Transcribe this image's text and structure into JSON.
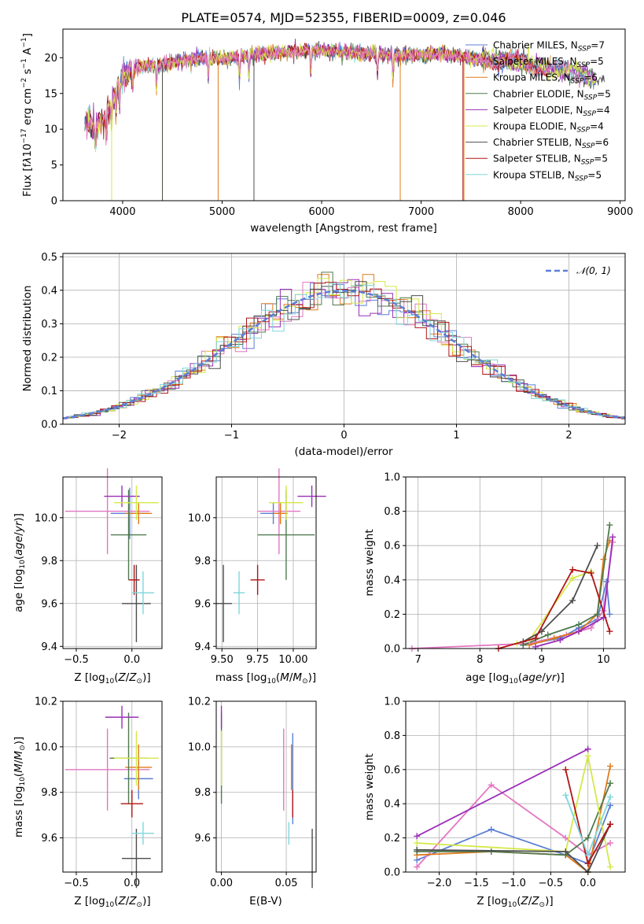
{
  "figure": {
    "title": "PLATE=0574, MJD=52355, FIBERID=0009, z=0.046",
    "colors": {
      "c1": "#5b7fd6",
      "c2": "#e377c2",
      "c3": "#e07b1a",
      "c4": "#4f7a4f",
      "c5": "#9a2fb8",
      "c6": "#d4e84a",
      "c7": "#4d4d4d",
      "c8": "#b01515",
      "c9": "#7fd6dc"
    },
    "models": [
      {
        "name": "Chabrier MILES",
        "nssp": "7",
        "color": "#5b7fd6"
      },
      {
        "name": "Salpeter MILES",
        "nssp": "5",
        "color": "#e377c2"
      },
      {
        "name": "Kroupa MILES",
        "nssp": "6",
        "color": "#e07b1a"
      },
      {
        "name": "Chabrier ELODIE",
        "nssp": "5",
        "color": "#4f7a4f"
      },
      {
        "name": "Salpeter ELODIE",
        "nssp": "4",
        "color": "#9a2fb8"
      },
      {
        "name": "Kroupa ELODIE",
        "nssp": "4",
        "color": "#d4e84a"
      },
      {
        "name": "Chabrier STELIB",
        "nssp": "6",
        "color": "#4d4d4d"
      },
      {
        "name": "Salpeter STELIB",
        "nssp": "5",
        "color": "#b01515"
      },
      {
        "name": "Kroupa STELIB",
        "nssp": "5",
        "color": "#7fd6dc"
      }
    ]
  },
  "chart_data": [
    {
      "type": "line",
      "id": "spectrum",
      "xlabel": "wavelength [Angstrom, rest frame]",
      "ylabel": "Flux [f_λ 10^-17 erg cm^-2 s^-1 A^-1]",
      "xlim": [
        3400,
        9050
      ],
      "ylim": [
        0,
        24
      ],
      "xticks": [
        4000,
        5000,
        6000,
        7000,
        8000,
        9000
      ],
      "yticks": [
        0,
        5,
        10,
        15,
        20
      ],
      "grid": false,
      "legend": "top-right",
      "continuum": {
        "x": [
          3650,
          3700,
          3800,
          3900,
          4000,
          4100,
          4200,
          4400,
          4600,
          4800,
          5000,
          5300,
          5600,
          6000,
          6400,
          6800,
          7000,
          7200,
          7400,
          7600,
          7800,
          8000,
          8200,
          8400,
          8600,
          8800
        ],
        "y": [
          11,
          10.5,
          11,
          14,
          17.5,
          18.3,
          18.8,
          19,
          19.6,
          20,
          19.8,
          20.4,
          20.8,
          21,
          20.6,
          20.4,
          20.4,
          20.5,
          20.2,
          19.8,
          19.6,
          19.4,
          18.7,
          18.4,
          17.8,
          16.8
        ]
      }
    },
    {
      "type": "histogram",
      "id": "residuals",
      "xlabel": "(data-model)/error",
      "ylabel": "Normed distribution",
      "xlim": [
        -2.5,
        2.5
      ],
      "ylim": [
        0,
        0.51
      ],
      "xticks": [
        -2,
        -1,
        0,
        1,
        2
      ],
      "yticks": [
        0,
        0.1,
        0.2,
        0.3,
        0.4,
        0.5
      ],
      "grid": true,
      "legend": "top-right",
      "reference": {
        "name": "N(0,1)",
        "mean": 0,
        "sigma": 1
      },
      "bin_width": 0.1
    },
    {
      "type": "scatter",
      "id": "age_vs_Z",
      "xlabel": "Z [log10(Z/Z⊙)]",
      "ylabel": "age [log10(age/yr)]",
      "xlim": [
        -0.62,
        0.27
      ],
      "ylim": [
        9.39,
        10.19
      ],
      "xticks": [
        -0.5,
        0.0
      ],
      "yticks": [
        9.4,
        9.6,
        9.8,
        10.0
      ],
      "grid": true,
      "points": [
        {
          "x": -0.02,
          "y": 10.02,
          "xerr": 0.17,
          "yerr": 0.12
        },
        {
          "x": -0.22,
          "y": 10.03,
          "xerr": 0.38,
          "yerr": 0.2
        },
        {
          "x": 0.06,
          "y": 10.02,
          "xerr": 0.12,
          "yerr": 0.05
        },
        {
          "x": -0.03,
          "y": 9.92,
          "xerr": 0.16,
          "yerr": 0.21
        },
        {
          "x": -0.09,
          "y": 10.1,
          "xerr": 0.16,
          "yerr": 0.05
        },
        {
          "x": 0.04,
          "y": 10.07,
          "xerr": 0.2,
          "yerr": 0.08
        },
        {
          "x": 0.04,
          "y": 9.6,
          "xerr": 0.13,
          "yerr": 0.18
        },
        {
          "x": 0.02,
          "y": 9.71,
          "xerr": 0.05,
          "yerr": 0.07
        },
        {
          "x": 0.1,
          "y": 9.65,
          "xerr": 0.1,
          "yerr": 0.1
        }
      ]
    },
    {
      "type": "scatter",
      "id": "age_vs_mass",
      "xlabel": "mass [log10(M/M⊙)]",
      "ylabel": "",
      "xlim": [
        9.46,
        10.16
      ],
      "ylim": [
        9.39,
        10.19
      ],
      "xticks": [
        9.5,
        9.75,
        10.0
      ],
      "yticks": [
        9.4,
        9.6,
        9.8,
        10.0
      ],
      "grid": true,
      "points": [
        {
          "x": 9.86,
          "y": 10.02,
          "xerr": 0.09,
          "yerr": 0.05
        },
        {
          "x": 9.9,
          "y": 10.03,
          "xerr": 0.15,
          "yerr": 0.2
        },
        {
          "x": 9.91,
          "y": 10.02,
          "xerr": 0.05,
          "yerr": 0.05
        },
        {
          "x": 9.95,
          "y": 9.92,
          "xerr": 0.2,
          "yerr": 0.21
        },
        {
          "x": 10.13,
          "y": 10.1,
          "xerr": 0.1,
          "yerr": 0.05
        },
        {
          "x": 9.95,
          "y": 10.07,
          "xerr": 0.12,
          "yerr": 0.08
        },
        {
          "x": 9.51,
          "y": 9.6,
          "xerr": 0.06,
          "yerr": 0.18
        },
        {
          "x": 9.75,
          "y": 9.71,
          "xerr": 0.05,
          "yerr": 0.07
        },
        {
          "x": 9.62,
          "y": 9.65,
          "xerr": 0.04,
          "yerr": 0.1
        }
      ]
    },
    {
      "type": "line",
      "id": "mw_vs_age",
      "xlabel": "age [log10(age/yr)]",
      "ylabel": "mass weight",
      "xlim": [
        6.8,
        10.35
      ],
      "ylim": [
        0,
        1
      ],
      "xticks": [
        7,
        8,
        9,
        10
      ],
      "yticks": [
        0,
        0.2,
        0.4,
        0.6,
        0.8,
        1.0
      ],
      "grid": true,
      "series": [
        {
          "x": [
            8.7,
            9.3,
            9.6,
            9.9,
            10.05,
            10.1
          ],
          "y": [
            0.02,
            0.06,
            0.12,
            0.17,
            0.39,
            0.2
          ]
        },
        {
          "x": 8.9,
          "note": "",
          "y": 0
        },
        {
          "x": [
            6.9,
            8.8,
            9.4,
            9.8,
            10.0,
            10.15
          ],
          "y": [
            0,
            0.03,
            0.08,
            0.12,
            0.22,
            0.62
          ]
        },
        {
          "x": [
            8.8,
            9.2,
            9.6,
            9.9,
            10.0,
            10.1
          ],
          "y": [
            0.02,
            0.06,
            0.1,
            0.2,
            0.52,
            0.63
          ]
        },
        {
          "x": [
            8.7,
            9.1,
            9.6,
            9.9,
            10.1
          ],
          "y": [
            0.02,
            0.08,
            0.14,
            0.2,
            0.72
          ]
        },
        {
          "x": [
            8.9,
            9.3,
            9.6,
            10.0,
            10.15
          ],
          "y": [
            0.01,
            0.05,
            0.1,
            0.18,
            0.65
          ]
        },
        {
          "x": [
            8.6,
            8.8,
            9.5,
            9.8
          ],
          "y": [
            0.03,
            0.05,
            0.41,
            0.45
          ]
        },
        {
          "x": [
            8.7,
            9.0,
            9.5,
            9.9
          ],
          "y": [
            0.04,
            0.1,
            0.28,
            0.6
          ]
        },
        {
          "x": [
            8.3,
            8.9,
            9.5,
            9.8,
            10.1
          ],
          "y": [
            0,
            0.06,
            0.46,
            0.44,
            0.1
          ]
        }
      ]
    },
    {
      "type": "scatter",
      "id": "mass_vs_Z",
      "xlabel": "Z [log10(Z/Z⊙)]",
      "ylabel": "mass [log10(M/M⊙)]",
      "xlim": [
        -0.62,
        0.27
      ],
      "ylim": [
        9.45,
        10.2
      ],
      "xticks": [
        -0.5,
        0.0
      ],
      "yticks": [
        9.6,
        9.8,
        10.0,
        10.2
      ],
      "grid": true,
      "points": [
        {
          "x": 0.06,
          "y": 9.86,
          "xerr": 0.13,
          "yerr": 0.09
        },
        {
          "x": -0.22,
          "y": 9.9,
          "xerr": 0.38,
          "yerr": 0.18
        },
        {
          "x": 0.06,
          "y": 9.91,
          "xerr": 0.12,
          "yerr": 0.1
        },
        {
          "x": -0.03,
          "y": 9.95,
          "xerr": 0.17,
          "yerr": 0.2
        },
        {
          "x": -0.09,
          "y": 10.13,
          "xerr": 0.15,
          "yerr": 0.05
        },
        {
          "x": 0.04,
          "y": 9.95,
          "xerr": 0.2,
          "yerr": 0.12
        },
        {
          "x": 0.04,
          "y": 9.51,
          "xerr": 0.13,
          "yerr": 0.13
        },
        {
          "x": 0.0,
          "y": 9.75,
          "xerr": 0.1,
          "yerr": 0.06
        },
        {
          "x": 0.1,
          "y": 9.62,
          "xerr": 0.1,
          "yerr": 0.05
        }
      ]
    },
    {
      "type": "scatter",
      "id": "mass_vs_ebv",
      "xlabel": "E(B-V)",
      "ylabel": "",
      "xlim": [
        -0.004,
        0.073
      ],
      "ylim": [
        9.45,
        10.2
      ],
      "xticks": [
        0.0,
        0.05
      ],
      "yticks": [
        9.6,
        9.8,
        10.0,
        10.2
      ],
      "grid": true,
      "points": [
        {
          "x": 0.055,
          "y": 9.86,
          "yerr": 0.2
        },
        {
          "x": 0.048,
          "y": 9.9,
          "yerr": 0.18
        },
        {
          "x": 0.054,
          "y": 9.91,
          "yerr": 0.1
        },
        {
          "x": 0.0,
          "y": 9.95,
          "yerr": 0.2
        },
        {
          "x": 0.0,
          "y": 10.13,
          "yerr": 0.05
        },
        {
          "x": 0.0,
          "y": 9.95,
          "yerr": 0.12
        },
        {
          "x": 0.07,
          "y": 9.51,
          "yerr": 0.13
        },
        {
          "x": 0.055,
          "y": 9.75,
          "yerr": 0.06
        },
        {
          "x": 0.052,
          "y": 9.62,
          "yerr": 0.05
        }
      ]
    },
    {
      "type": "line",
      "id": "mw_vs_Z",
      "xlabel": "Z [log10(Z/Z⊙)]",
      "ylabel": "mass weight",
      "xlim": [
        -2.45,
        0.5
      ],
      "ylim": [
        0,
        1
      ],
      "xticks": [
        -2.0,
        -1.5,
        -1.0,
        -0.5,
        0.0
      ],
      "yticks": [
        0,
        0.2,
        0.4,
        0.6,
        0.8,
        1.0
      ],
      "grid": true,
      "series": [
        {
          "x": [
            -2.3,
            -1.3,
            -0.3,
            0.0,
            0.3
          ],
          "y": [
            0.07,
            0.25,
            0.1,
            0.05,
            0.39
          ]
        },
        {
          "x": [
            -2.3,
            -1.3,
            -0.3,
            0.0,
            0.3
          ],
          "y": [
            0.03,
            0.51,
            0.2,
            0.1,
            0.17
          ]
        },
        {
          "x": [
            -2.3,
            -1.3,
            -0.3,
            0.0,
            0.3
          ],
          "y": [
            0.1,
            0.12,
            0.1,
            0.0,
            0.62
          ]
        },
        {
          "x": [
            -2.3,
            -1.3,
            -0.3,
            0.0,
            0.3
          ],
          "y": [
            0.12,
            0.12,
            0.1,
            0.2,
            0.52
          ]
        },
        {
          "x": [
            -2.3,
            0.0
          ],
          "y": [
            0.21,
            0.72
          ]
        },
        {
          "x": [
            -2.3,
            -0.3,
            0.0,
            0.3
          ],
          "y": [
            0.17,
            0.12,
            0.68,
            0.03
          ]
        },
        {
          "x": [
            -2.3,
            -0.3,
            0.0,
            0.3
          ],
          "y": [
            0.13,
            0.12,
            0.0,
            0.28
          ]
        },
        {
          "x": [
            -0.3,
            0.0,
            0.3
          ],
          "y": [
            0.6,
            0.05,
            0.28
          ]
        },
        {
          "x": [
            -0.3,
            0.0,
            0.3
          ],
          "y": [
            0.45,
            0.1,
            0.44
          ]
        }
      ]
    }
  ]
}
